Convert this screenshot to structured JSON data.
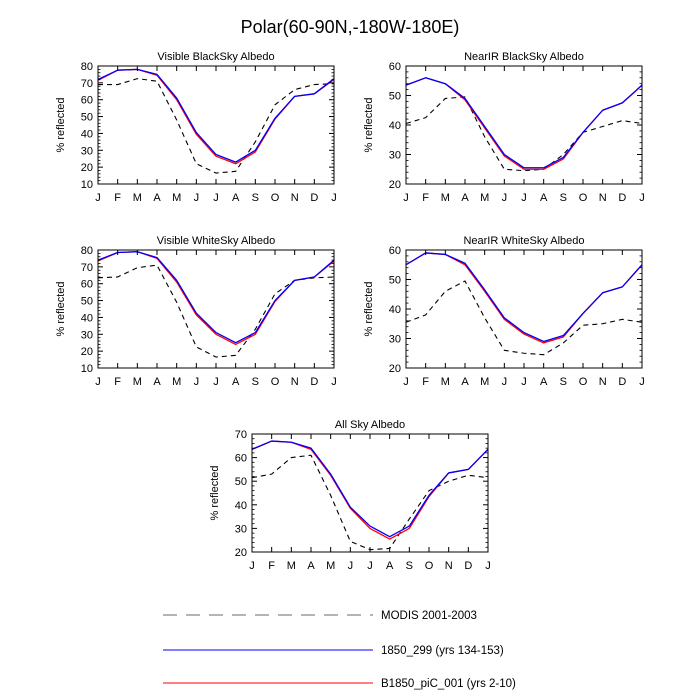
{
  "page_title": "Polar(60-90N,-180W-180E)",
  "legend": [
    {
      "label": "MODIS 2001-2003",
      "color": "#000000",
      "style": "dashed"
    },
    {
      "label": "1850_299 (yrs 134-153)",
      "color": "#0000ff",
      "style": "solid"
    },
    {
      "label": "B1850_piC_001 (yrs 2-10)",
      "color": "#ff0000",
      "style": "solid"
    }
  ],
  "chart_data": [
    {
      "type": "line",
      "title": "Visible BlackSky Albedo",
      "ylabel": "% reflected",
      "categories": [
        "J",
        "F",
        "M",
        "A",
        "M",
        "J",
        "J",
        "A",
        "S",
        "O",
        "N",
        "D",
        "J"
      ],
      "ylim": [
        10,
        80
      ],
      "yticks": [
        10,
        20,
        30,
        40,
        50,
        60,
        70,
        80
      ],
      "series": [
        {
          "values": [
            69,
            69,
            72.5,
            71,
            48,
            22,
            16.5,
            17.5,
            35,
            57,
            66,
            69,
            69.5
          ]
        },
        {
          "values": [
            72,
            77.5,
            78,
            75,
            61,
            40.5,
            27.5,
            23,
            30,
            49,
            62,
            63.5,
            72.5
          ]
        },
        {
          "values": [
            71.5,
            77.5,
            78,
            74.5,
            60,
            39.5,
            26.5,
            22,
            29,
            48.5,
            62,
            63.5,
            72
          ]
        }
      ]
    },
    {
      "type": "line",
      "title": "NearIR BlackSky Albedo",
      "ylabel": "% reflected",
      "categories": [
        "J",
        "F",
        "M",
        "A",
        "M",
        "J",
        "J",
        "A",
        "S",
        "O",
        "N",
        "D",
        "J"
      ],
      "ylim": [
        20,
        60
      ],
      "yticks": [
        20,
        30,
        40,
        50,
        60
      ],
      "series": [
        {
          "values": [
            40.5,
            42.5,
            49,
            49.5,
            36,
            25,
            24.5,
            25,
            30,
            37.5,
            39.5,
            41.5,
            40.5
          ]
        },
        {
          "values": [
            53.5,
            56,
            54,
            49,
            39.5,
            30,
            25.5,
            25.5,
            29,
            37.5,
            45,
            47.5,
            53.5
          ]
        },
        {
          "values": [
            53.5,
            56,
            54,
            48.5,
            39,
            29.5,
            25,
            25,
            28.5,
            37.5,
            45,
            47.5,
            53.5
          ]
        }
      ]
    },
    {
      "type": "line",
      "title": "Visible WhiteSky Albedo",
      "ylabel": "% reflected",
      "categories": [
        "J",
        "F",
        "M",
        "A",
        "M",
        "J",
        "J",
        "A",
        "S",
        "O",
        "N",
        "D",
        "J"
      ],
      "ylim": [
        10,
        80
      ],
      "yticks": [
        10,
        20,
        30,
        40,
        50,
        60,
        70,
        80
      ],
      "series": [
        {
          "values": [
            63.5,
            64,
            69.5,
            71,
            49,
            22.5,
            16.5,
            17.5,
            33,
            54,
            62,
            63.5,
            64
          ]
        },
        {
          "values": [
            74,
            78.5,
            79,
            75.5,
            62,
            42.5,
            31,
            25,
            31,
            50,
            62,
            64,
            74
          ]
        },
        {
          "values": [
            73.5,
            78.5,
            79,
            75,
            61,
            41.5,
            30,
            24,
            30,
            49.5,
            62,
            64,
            73.5
          ]
        }
      ]
    },
    {
      "type": "line",
      "title": "NearIR WhiteSky Albedo",
      "ylabel": "% reflected",
      "categories": [
        "J",
        "F",
        "M",
        "A",
        "M",
        "J",
        "J",
        "A",
        "S",
        "O",
        "N",
        "D",
        "J"
      ],
      "ylim": [
        20,
        60
      ],
      "yticks": [
        20,
        30,
        40,
        50,
        60
      ],
      "series": [
        {
          "values": [
            35.5,
            38,
            46,
            49.5,
            37,
            26,
            25,
            24.5,
            28.5,
            34.5,
            35,
            36.5,
            35.5
          ]
        },
        {
          "values": [
            55,
            59,
            58.5,
            55.5,
            46.5,
            37,
            32,
            29,
            31,
            38.5,
            45.5,
            47.5,
            55
          ]
        },
        {
          "values": [
            55,
            59,
            58.5,
            55,
            46,
            36.5,
            31.5,
            28.5,
            30.5,
            38.5,
            45.5,
            47.5,
            55
          ]
        }
      ]
    },
    {
      "type": "line",
      "title": "All Sky Albedo",
      "ylabel": "% reflected",
      "categories": [
        "J",
        "F",
        "M",
        "A",
        "M",
        "J",
        "J",
        "A",
        "S",
        "O",
        "N",
        "D",
        "J"
      ],
      "ylim": [
        20,
        70
      ],
      "yticks": [
        20,
        30,
        40,
        50,
        60,
        70
      ],
      "series": [
        {
          "values": [
            51.5,
            53,
            60,
            61,
            44,
            24.5,
            21,
            21.5,
            34,
            46,
            50,
            52.5,
            51.5
          ]
        },
        {
          "values": [
            63.5,
            67,
            66.5,
            64,
            53,
            39,
            31,
            26.5,
            31,
            44,
            53.5,
            55,
            63.5
          ]
        },
        {
          "values": [
            63.5,
            67,
            66.5,
            63.5,
            52.5,
            38.5,
            30,
            25.5,
            30,
            43.5,
            53.5,
            55,
            63.5
          ]
        }
      ]
    }
  ]
}
